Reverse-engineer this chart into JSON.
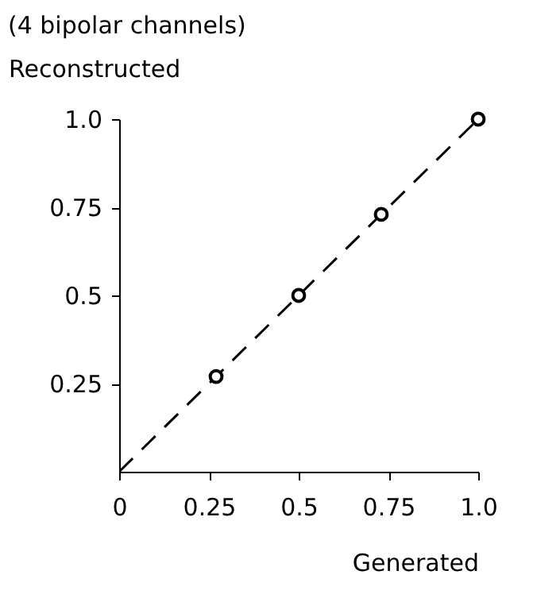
{
  "chart_data": {
    "type": "scatter",
    "title": "(4 bipolar channels)",
    "ylabel": "Reconstructed",
    "xlabel": "Generated",
    "xlim": [
      0,
      1
    ],
    "ylim": [
      0,
      1
    ],
    "xticks": [
      0,
      0.25,
      0.5,
      0.75,
      {
        "value": 1,
        "label": "1.0"
      }
    ],
    "yticks": [
      0.25,
      0.5,
      0.75,
      {
        "value": 1,
        "label": "1.0"
      }
    ],
    "grid": false,
    "series": [
      {
        "type": "line",
        "color": "#000000",
        "x": [
          0,
          1
        ],
        "values": [
          0,
          1
        ],
        "line_style": "dashed",
        "marker": "none"
      },
      {
        "type": "scatter",
        "color": "#000000",
        "x": [
          0.27,
          0.5,
          0.73,
          1.0
        ],
        "values": [
          0.27,
          0.5,
          0.73,
          1.0
        ],
        "marker": "circle"
      }
    ]
  }
}
